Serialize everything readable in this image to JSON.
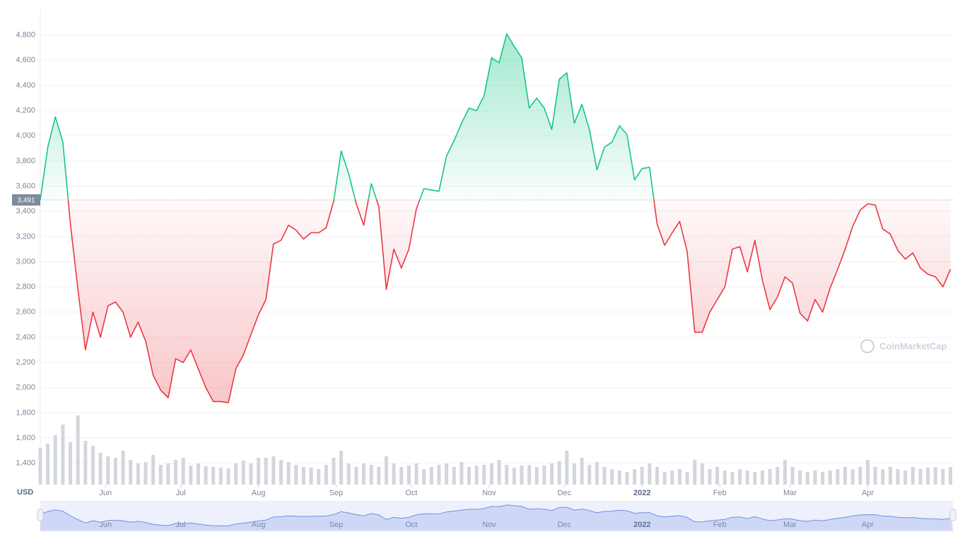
{
  "chart_data": {
    "type": "line",
    "currency": "USD",
    "watermark": "CoinMarketCap",
    "x": [
      0,
      3,
      6,
      9,
      12,
      15,
      18,
      21,
      24,
      27,
      30,
      33,
      36,
      39,
      42,
      45,
      48,
      51,
      54,
      57,
      60,
      63,
      66,
      69,
      72,
      75,
      78,
      81,
      84,
      87,
      90,
      93,
      96,
      99,
      102,
      105,
      108,
      111,
      114,
      117,
      120,
      123,
      126,
      129,
      132,
      135,
      138,
      141,
      144,
      147,
      150,
      153,
      156,
      159,
      162,
      165,
      168,
      171,
      174,
      177,
      180,
      183,
      186,
      189,
      192,
      195,
      198,
      201,
      204,
      207,
      210,
      213,
      216,
      219,
      222,
      225,
      228,
      231,
      234,
      237,
      240,
      243,
      246,
      249,
      252,
      255,
      258,
      261,
      264,
      267,
      270,
      273,
      276,
      279,
      282,
      285,
      288,
      291,
      294,
      297,
      300,
      303,
      306,
      309,
      312,
      315,
      318,
      321,
      324,
      327,
      330,
      333,
      336,
      339,
      342,
      345,
      348,
      351,
      354,
      357,
      360,
      363
    ],
    "xlim": [
      0,
      364
    ],
    "xticks": [
      {
        "value": 26,
        "label": "Jun"
      },
      {
        "value": 56,
        "label": "Jul"
      },
      {
        "value": 87,
        "label": "Aug"
      },
      {
        "value": 118,
        "label": "Sep"
      },
      {
        "value": 148,
        "label": "Oct"
      },
      {
        "value": 179,
        "label": "Nov"
      },
      {
        "value": 209,
        "label": "Dec"
      },
      {
        "value": 240,
        "label": "2022"
      },
      {
        "value": 271,
        "label": "Feb"
      },
      {
        "value": 299,
        "label": "Mar"
      },
      {
        "value": 330,
        "label": "Apr"
      }
    ],
    "ylim": [
      1230,
      5000
    ],
    "yticks": [
      {
        "value": 1400,
        "label": "1,400"
      },
      {
        "value": 1600,
        "label": "1,600"
      },
      {
        "value": 1800,
        "label": "1,800"
      },
      {
        "value": 2000,
        "label": "2,000"
      },
      {
        "value": 2200,
        "label": "2,200"
      },
      {
        "value": 2400,
        "label": "2,400"
      },
      {
        "value": 2600,
        "label": "2,600"
      },
      {
        "value": 2800,
        "label": "2,800"
      },
      {
        "value": 3000,
        "label": "3,000"
      },
      {
        "value": 3200,
        "label": "3,200"
      },
      {
        "value": 3400,
        "label": "3,400"
      },
      {
        "value": 3600,
        "label": "3,600"
      },
      {
        "value": 3800,
        "label": "3,800"
      },
      {
        "value": 4000,
        "label": "4,000"
      },
      {
        "value": 4200,
        "label": "4,200"
      },
      {
        "value": 4400,
        "label": "4,400"
      },
      {
        "value": 4600,
        "label": "4,600"
      },
      {
        "value": 4800,
        "label": "4,800"
      }
    ],
    "grid": true,
    "reference": {
      "value": 3491,
      "label": "3,491"
    },
    "up_color": "#16c784",
    "down_color": "#ea3943",
    "series": [
      {
        "values": [
          3491,
          3910,
          4150,
          3950,
          3300,
          2780,
          2300,
          2600,
          2400,
          2650,
          2680,
          2600,
          2400,
          2520,
          2370,
          2100,
          1980,
          1920,
          2230,
          2200,
          2300,
          2150,
          2000,
          1890,
          1890,
          1880,
          2150,
          2260,
          2420,
          2580,
          2700,
          3140,
          3170,
          3290,
          3250,
          3180,
          3230,
          3230,
          3270,
          3480,
          3880,
          3700,
          3460,
          3290,
          3620,
          3440,
          2780,
          3100,
          2950,
          3100,
          3420,
          3580,
          3570,
          3560,
          3840,
          3960,
          4100,
          4220,
          4200,
          4320,
          4620,
          4580,
          4810,
          4710,
          4620,
          4220,
          4300,
          4220,
          4050,
          4450,
          4500,
          4100,
          4250,
          4050,
          3730,
          3910,
          3950,
          4080,
          4010,
          3650,
          3740,
          3750,
          3300,
          3130,
          3230,
          3320,
          3080,
          2440,
          2440,
          2600,
          2700,
          2800,
          3100,
          3120,
          2920,
          3170,
          2850,
          2620,
          2720,
          2880,
          2830,
          2590,
          2530,
          2700,
          2600,
          2790,
          2940,
          3100,
          3280,
          3410,
          3460,
          3450,
          3260,
          3220,
          3090,
          3020,
          3070,
          2950,
          2900,
          2880,
          2800,
          2940
        ]
      }
    ],
    "volume": {
      "axis": "y2",
      "color": "#d3d6dd",
      "values": [
        52,
        58,
        70,
        85,
        60,
        98,
        62,
        55,
        45,
        40,
        38,
        48,
        35,
        30,
        32,
        42,
        28,
        30,
        35,
        38,
        27,
        30,
        26,
        25,
        24,
        23,
        30,
        34,
        30,
        38,
        38,
        40,
        35,
        32,
        28,
        25,
        24,
        22,
        28,
        38,
        48,
        30,
        25,
        30,
        28,
        25,
        40,
        30,
        25,
        27,
        30,
        22,
        25,
        28,
        30,
        25,
        32,
        25,
        27,
        28,
        30,
        35,
        28,
        24,
        27,
        28,
        25,
        27,
        30,
        33,
        48,
        30,
        38,
        28,
        32,
        25,
        22,
        20,
        18,
        22,
        25,
        30,
        25,
        18,
        20,
        22,
        18,
        35,
        30,
        22,
        25,
        20,
        18,
        22,
        20,
        18,
        20,
        22,
        25,
        35,
        25,
        20,
        18,
        20,
        18,
        20,
        22,
        25,
        22,
        25,
        35,
        25,
        22,
        25,
        22,
        20,
        25,
        22,
        24,
        25,
        22,
        25
      ]
    },
    "y2lim": [
      0,
      100
    ],
    "navigator_color": "#6f8fe6"
  }
}
